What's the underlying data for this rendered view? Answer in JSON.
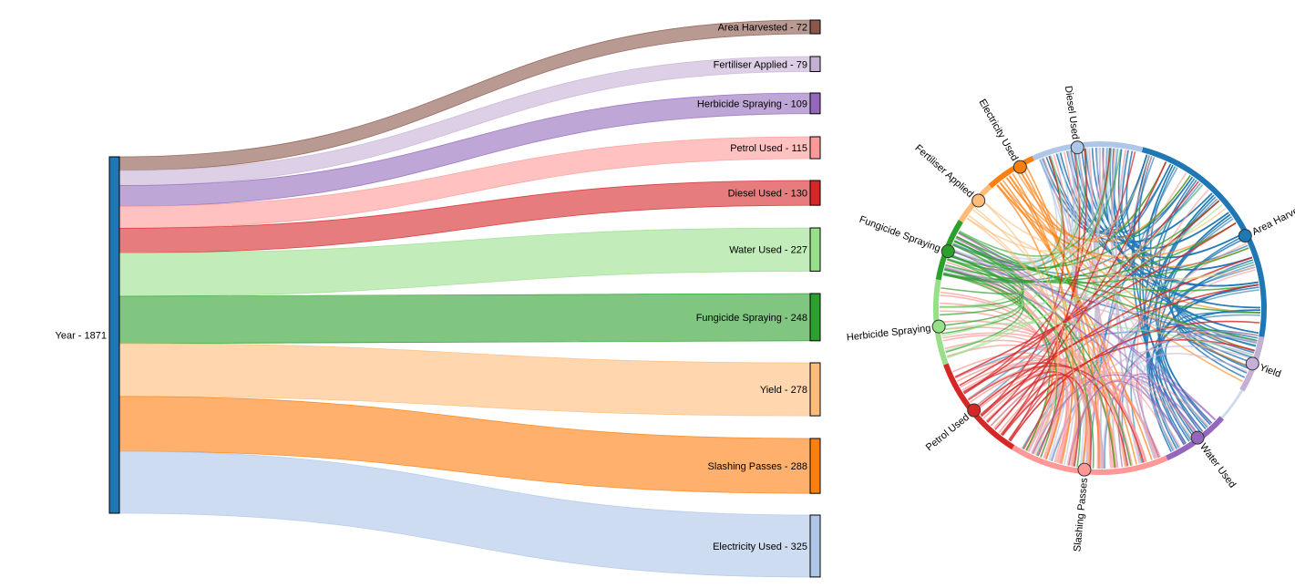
{
  "chart_data": [
    {
      "type": "sankey",
      "source": {
        "label": "Year - 1871",
        "value": 1871,
        "color": "#1f77b4"
      },
      "targets": [
        {
          "label": "Area Harvested - 72",
          "value": 72,
          "color": "#8c564b",
          "link": "#b89a93"
        },
        {
          "label": "Fertiliser Applied - 79",
          "value": 79,
          "color": "#c5b0d5",
          "link": "#ddd0e6"
        },
        {
          "label": "Herbicide Spraying - 109",
          "value": 109,
          "color": "#9467bd",
          "link": "#bea6d6"
        },
        {
          "label": "Petrol Used - 115",
          "value": 115,
          "color": "#ff9896",
          "link": "#ffc2c1"
        },
        {
          "label": "Diesel Used - 130",
          "value": 130,
          "color": "#d62728",
          "link": "#e67c7d"
        },
        {
          "label": "Water Used - 227",
          "value": 227,
          "color": "#98df8a",
          "link": "#c2ecb9"
        },
        {
          "label": "Fungicide Spraying - 248",
          "value": 248,
          "color": "#2ca02c",
          "link": "#80c680"
        },
        {
          "label": "Yield - 278",
          "value": 278,
          "color": "#ffbb78",
          "link": "#ffd6ad"
        },
        {
          "label": "Slashing Passes - 288",
          "value": 288,
          "color": "#ff7f0e",
          "link": "#ffb06c"
        },
        {
          "label": "Electricity Used - 325",
          "value": 325,
          "color": "#aec7e8",
          "link": "#cddcf1"
        }
      ]
    },
    {
      "type": "chord",
      "groups": [
        {
          "label": "Area Harvested",
          "color": "#1f77b4"
        },
        {
          "label": "Yield",
          "color": "#c5b0d5"
        },
        {
          "label": "Water Used",
          "color": "#9467bd"
        },
        {
          "label": "Slashing Passes",
          "color": "#ff9896"
        },
        {
          "label": "Petrol Used",
          "color": "#d62728"
        },
        {
          "label": "Herbicide Spraying",
          "color": "#98df8a"
        },
        {
          "label": "Fungicide Spraying",
          "color": "#2ca02c"
        },
        {
          "label": "Fertiliser Applied",
          "color": "#ffbb78"
        },
        {
          "label": "Electricity Used",
          "color": "#ff7f0e"
        },
        {
          "label": "Diesel Used",
          "color": "#aec7e8"
        }
      ]
    }
  ]
}
